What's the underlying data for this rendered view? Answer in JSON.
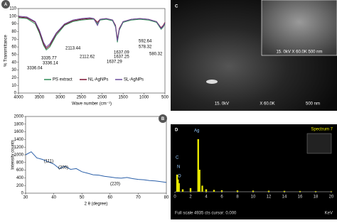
{
  "chart_data": [
    {
      "type": "line",
      "panel": "A",
      "ylabel": "% Transmittance",
      "xlabel": "Wave number (cm⁻¹)",
      "xlim": [
        4000,
        500
      ],
      "xticks": [
        4000,
        3500,
        3000,
        2500,
        2000,
        1500,
        1000,
        500
      ],
      "ylim": [
        0,
        110
      ],
      "yticks": [
        0,
        10,
        20,
        30,
        40,
        50,
        60,
        70,
        80,
        90,
        100,
        110
      ],
      "grid": false,
      "legend": "bottom",
      "x": [
        4000,
        3800,
        3600,
        3500,
        3400,
        3336,
        3250,
        3100,
        2900,
        2700,
        2500,
        2300,
        2200,
        2113,
        2050,
        1900,
        1750,
        1680,
        1637,
        1590,
        1500,
        1300,
        1100,
        900,
        700,
        592,
        540,
        500
      ],
      "series": [
        {
          "name": "PS extract",
          "color": "#2e8b57",
          "values": [
            98,
            97,
            90,
            78,
            62,
            56,
            60,
            75,
            88,
            93,
            95,
            96,
            96,
            90,
            95,
            96,
            94,
            86,
            66,
            82,
            92,
            95,
            96,
            95,
            92,
            83,
            86,
            90
          ]
        },
        {
          "name": "NL-AgNPs",
          "color": "#7a1030",
          "values": [
            99,
            98,
            92,
            80,
            64,
            58,
            62,
            77,
            89,
            94,
            96,
            97,
            97,
            92,
            96,
            97,
            95,
            88,
            70,
            84,
            93,
            96,
            97,
            96,
            93,
            85,
            88,
            92
          ]
        },
        {
          "name": "SL-AgNPs",
          "color": "#6a4c9c",
          "values": [
            100,
            99,
            93,
            82,
            66,
            60,
            64,
            78,
            90,
            95,
            97,
            98,
            97,
            88,
            96,
            97,
            95,
            87,
            68,
            83,
            93,
            96,
            97,
            96,
            93,
            84,
            87,
            91
          ]
        }
      ],
      "annotations": [
        "3335.77",
        "3336.14",
        "3336.04",
        "2113.44",
        "2112.62",
        "1637.09",
        "1637.25",
        "1637.29",
        "592.64",
        "578.32",
        "580.32"
      ]
    },
    {
      "type": "line",
      "panel": "B",
      "ylabel": "Intensity counts",
      "xlabel": "2 θ (degree)",
      "xlim": [
        30,
        80
      ],
      "xticks": [
        30,
        40,
        50,
        60,
        70,
        80
      ],
      "ylim": [
        0,
        2000
      ],
      "yticks": [
        0,
        200,
        400,
        600,
        800,
        1000,
        1200,
        1400,
        1600,
        1800,
        2000
      ],
      "x": [
        30,
        32,
        34,
        36,
        38,
        40,
        42,
        44,
        46,
        48,
        50,
        52,
        54,
        56,
        58,
        60,
        62,
        64,
        66,
        68,
        70,
        72,
        74,
        76,
        78,
        80
      ],
      "series": [
        {
          "name": "XRD",
          "color": "#2a5fa8",
          "values": [
            1000,
            1080,
            920,
            880,
            820,
            760,
            640,
            700,
            620,
            640,
            560,
            520,
            480,
            470,
            440,
            420,
            400,
            390,
            410,
            380,
            360,
            350,
            330,
            320,
            300,
            280
          ]
        }
      ],
      "annotations": [
        "(111)",
        "(200)",
        "(220)"
      ]
    },
    {
      "type": "spectrum",
      "panel": "D",
      "xlabel": "KeV",
      "footer": "Full scale 4935 cts cursor: 0.000",
      "inset_title": "Spectrum 7",
      "xlim": [
        0,
        20
      ],
      "xticks": [
        0,
        2,
        4,
        6,
        8,
        10,
        12,
        14,
        16,
        18,
        20
      ],
      "ylim": [
        0,
        4935
      ],
      "x": [
        0.28,
        0.39,
        0.52,
        1.0,
        2.0,
        2.98,
        3.15,
        3.5,
        4.0,
        5,
        6,
        8,
        10,
        12,
        14,
        16,
        18,
        20
      ],
      "values": [
        1400,
        1000,
        700,
        200,
        300,
        4300,
        1800,
        500,
        200,
        150,
        120,
        100,
        90,
        80,
        70,
        60,
        50,
        40
      ],
      "color": "#e8e800",
      "peak_labels": [
        "C",
        "N",
        "O",
        "Ag"
      ]
    }
  ],
  "micrograph": {
    "panel": "C",
    "inset_caption": "15. 0kV  X 60.0K   500 nm",
    "voltage": "15. 0kV",
    "magnification": "X 60.0K",
    "scale": "500 nm"
  }
}
